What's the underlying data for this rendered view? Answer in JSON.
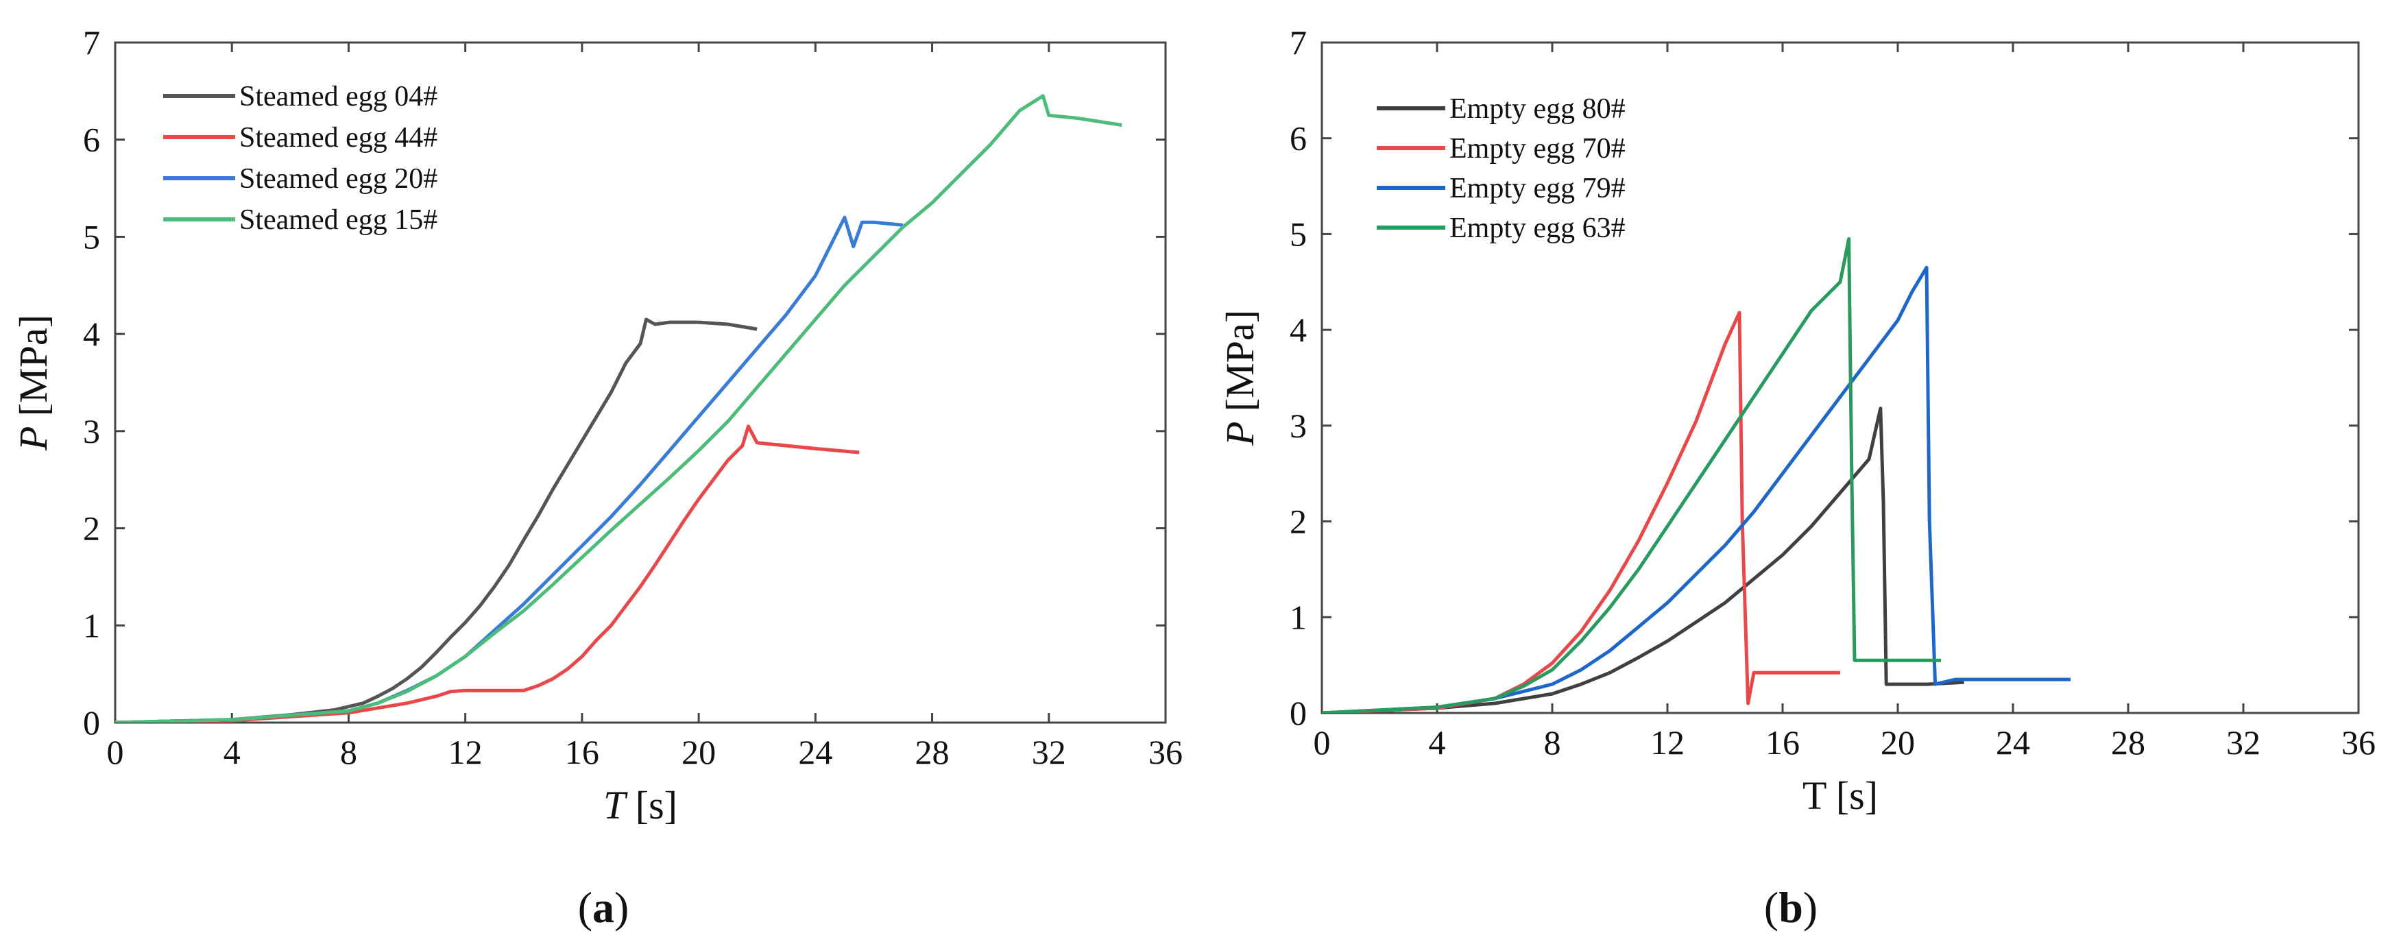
{
  "chart_data": [
    {
      "type": "line",
      "panel_label": "(a)",
      "xlabel_var": "T",
      "xlabel_unit": " [s]",
      "ylabel_var": "P",
      "ylabel_unit": " [MPa]",
      "xlim": [
        0,
        36
      ],
      "ylim": [
        0,
        7
      ],
      "xticks": [
        0,
        4,
        8,
        12,
        16,
        20,
        24,
        28,
        32,
        36
      ],
      "yticks": [
        0,
        1,
        2,
        3,
        4,
        5,
        6,
        7
      ],
      "legend": "top-left",
      "grid": false,
      "series": [
        {
          "name": "Steamed egg 04#",
          "color": "#555555",
          "x": [
            0,
            4,
            6,
            7.5,
            8.5,
            9.0,
            9.5,
            10.0,
            10.5,
            11.0,
            11.5,
            12.0,
            12.5,
            13.0,
            13.5,
            14.0,
            14.5,
            15.0,
            15.5,
            16.0,
            16.5,
            17.0,
            17.5,
            18.0,
            18.2,
            18.5,
            19.0,
            20.0,
            21.0,
            22.0
          ],
          "y": [
            0,
            0.03,
            0.08,
            0.13,
            0.2,
            0.27,
            0.35,
            0.45,
            0.57,
            0.72,
            0.88,
            1.03,
            1.2,
            1.4,
            1.62,
            1.88,
            2.13,
            2.4,
            2.65,
            2.9,
            3.15,
            3.4,
            3.7,
            3.9,
            4.15,
            4.1,
            4.12,
            4.12,
            4.1,
            4.05
          ]
        },
        {
          "name": "Steamed egg 44#",
          "color": "#e8484a",
          "x": [
            0,
            4,
            8,
            10,
            11,
            11.5,
            12,
            13,
            14,
            14.5,
            15,
            15.5,
            16,
            16.5,
            17,
            17.5,
            18,
            18.5,
            19,
            19.5,
            20,
            20.5,
            21,
            21.5,
            21.7,
            22,
            23,
            24,
            25.5
          ],
          "y": [
            0,
            0.02,
            0.1,
            0.2,
            0.27,
            0.32,
            0.33,
            0.33,
            0.33,
            0.38,
            0.45,
            0.55,
            0.68,
            0.85,
            1.0,
            1.2,
            1.4,
            1.62,
            1.85,
            2.08,
            2.3,
            2.5,
            2.7,
            2.85,
            3.05,
            2.88,
            2.85,
            2.82,
            2.78
          ]
        },
        {
          "name": "Steamed egg 20#",
          "color": "#3a7bd5",
          "x": [
            0,
            4,
            8,
            9,
            10,
            11,
            12,
            13,
            14,
            15,
            16,
            17,
            18,
            19,
            20,
            21,
            22,
            23,
            24,
            24.5,
            25,
            25.3,
            25.6,
            26,
            27
          ],
          "y": [
            0,
            0.03,
            0.12,
            0.2,
            0.33,
            0.48,
            0.68,
            0.95,
            1.22,
            1.52,
            1.82,
            2.12,
            2.45,
            2.8,
            3.15,
            3.5,
            3.85,
            4.2,
            4.6,
            4.9,
            5.2,
            4.9,
            5.15,
            5.15,
            5.12
          ]
        },
        {
          "name": "Steamed egg 15#",
          "color": "#4dbb7a",
          "x": [
            0,
            4,
            8,
            9,
            10,
            11,
            12,
            13,
            14,
            15,
            16,
            17,
            18,
            19,
            20,
            21,
            22,
            23,
            24,
            25,
            26,
            27,
            28,
            29,
            30,
            31,
            31.8,
            32,
            33,
            34.5
          ],
          "y": [
            0,
            0.03,
            0.12,
            0.2,
            0.32,
            0.48,
            0.68,
            0.92,
            1.15,
            1.42,
            1.7,
            1.98,
            2.25,
            2.52,
            2.8,
            3.1,
            3.45,
            3.8,
            4.15,
            4.5,
            4.8,
            5.1,
            5.35,
            5.65,
            5.95,
            6.3,
            6.45,
            6.25,
            6.22,
            6.15
          ]
        }
      ]
    },
    {
      "type": "line",
      "panel_label": "(b)",
      "xlabel_var": "T",
      "xlabel_unit": " [s]",
      "ylabel_var": "P",
      "ylabel_unit": " [MPa]",
      "xlim": [
        0,
        36
      ],
      "ylim": [
        0,
        7
      ],
      "xticks": [
        0,
        4,
        8,
        12,
        16,
        20,
        24,
        28,
        32,
        36
      ],
      "yticks": [
        0,
        1,
        2,
        3,
        4,
        5,
        6,
        7
      ],
      "legend": "top-left",
      "grid": false,
      "series": [
        {
          "name": "Empty egg 80#",
          "color": "#404040",
          "x": [
            0,
            4,
            6,
            8,
            9,
            10,
            11,
            12,
            13,
            14,
            15,
            16,
            17,
            18,
            19,
            19.4,
            19.5,
            19.6,
            20,
            21,
            22.3
          ],
          "y": [
            0,
            0.05,
            0.1,
            0.2,
            0.3,
            0.42,
            0.58,
            0.75,
            0.95,
            1.15,
            1.4,
            1.65,
            1.95,
            2.3,
            2.65,
            3.18,
            2.2,
            0.3,
            0.3,
            0.3,
            0.32
          ]
        },
        {
          "name": "Empty egg 70#",
          "color": "#e8484a",
          "x": [
            0,
            4,
            6,
            7,
            8,
            9,
            10,
            11,
            12,
            13,
            14,
            14.5,
            14.6,
            14.8,
            15,
            16,
            18
          ],
          "y": [
            0,
            0.05,
            0.15,
            0.3,
            0.52,
            0.85,
            1.28,
            1.8,
            2.4,
            3.05,
            3.85,
            4.18,
            2.0,
            0.1,
            0.42,
            0.42,
            0.42
          ]
        },
        {
          "name": "Empty egg 79#",
          "color": "#1f66c9",
          "x": [
            0,
            4,
            6,
            8,
            9,
            10,
            11,
            12,
            13,
            14,
            15,
            16,
            17,
            18,
            19,
            20,
            20.5,
            21.0,
            21.1,
            21.3,
            22,
            24,
            26
          ],
          "y": [
            0,
            0.06,
            0.15,
            0.3,
            0.45,
            0.65,
            0.9,
            1.15,
            1.45,
            1.75,
            2.1,
            2.5,
            2.9,
            3.3,
            3.7,
            4.1,
            4.4,
            4.65,
            2.0,
            0.3,
            0.35,
            0.35,
            0.35
          ]
        },
        {
          "name": "Empty egg 63#",
          "color": "#2a9a5e",
          "x": [
            0,
            4,
            6,
            7,
            8,
            9,
            10,
            11,
            12,
            13,
            14,
            15,
            16,
            17,
            18,
            18.3,
            18.4,
            18.5,
            19,
            20,
            21.5
          ],
          "y": [
            0,
            0.06,
            0.15,
            0.28,
            0.45,
            0.75,
            1.1,
            1.5,
            1.95,
            2.4,
            2.85,
            3.3,
            3.75,
            4.2,
            4.5,
            4.95,
            2.5,
            0.55,
            0.55,
            0.55,
            0.55
          ]
        }
      ]
    }
  ]
}
